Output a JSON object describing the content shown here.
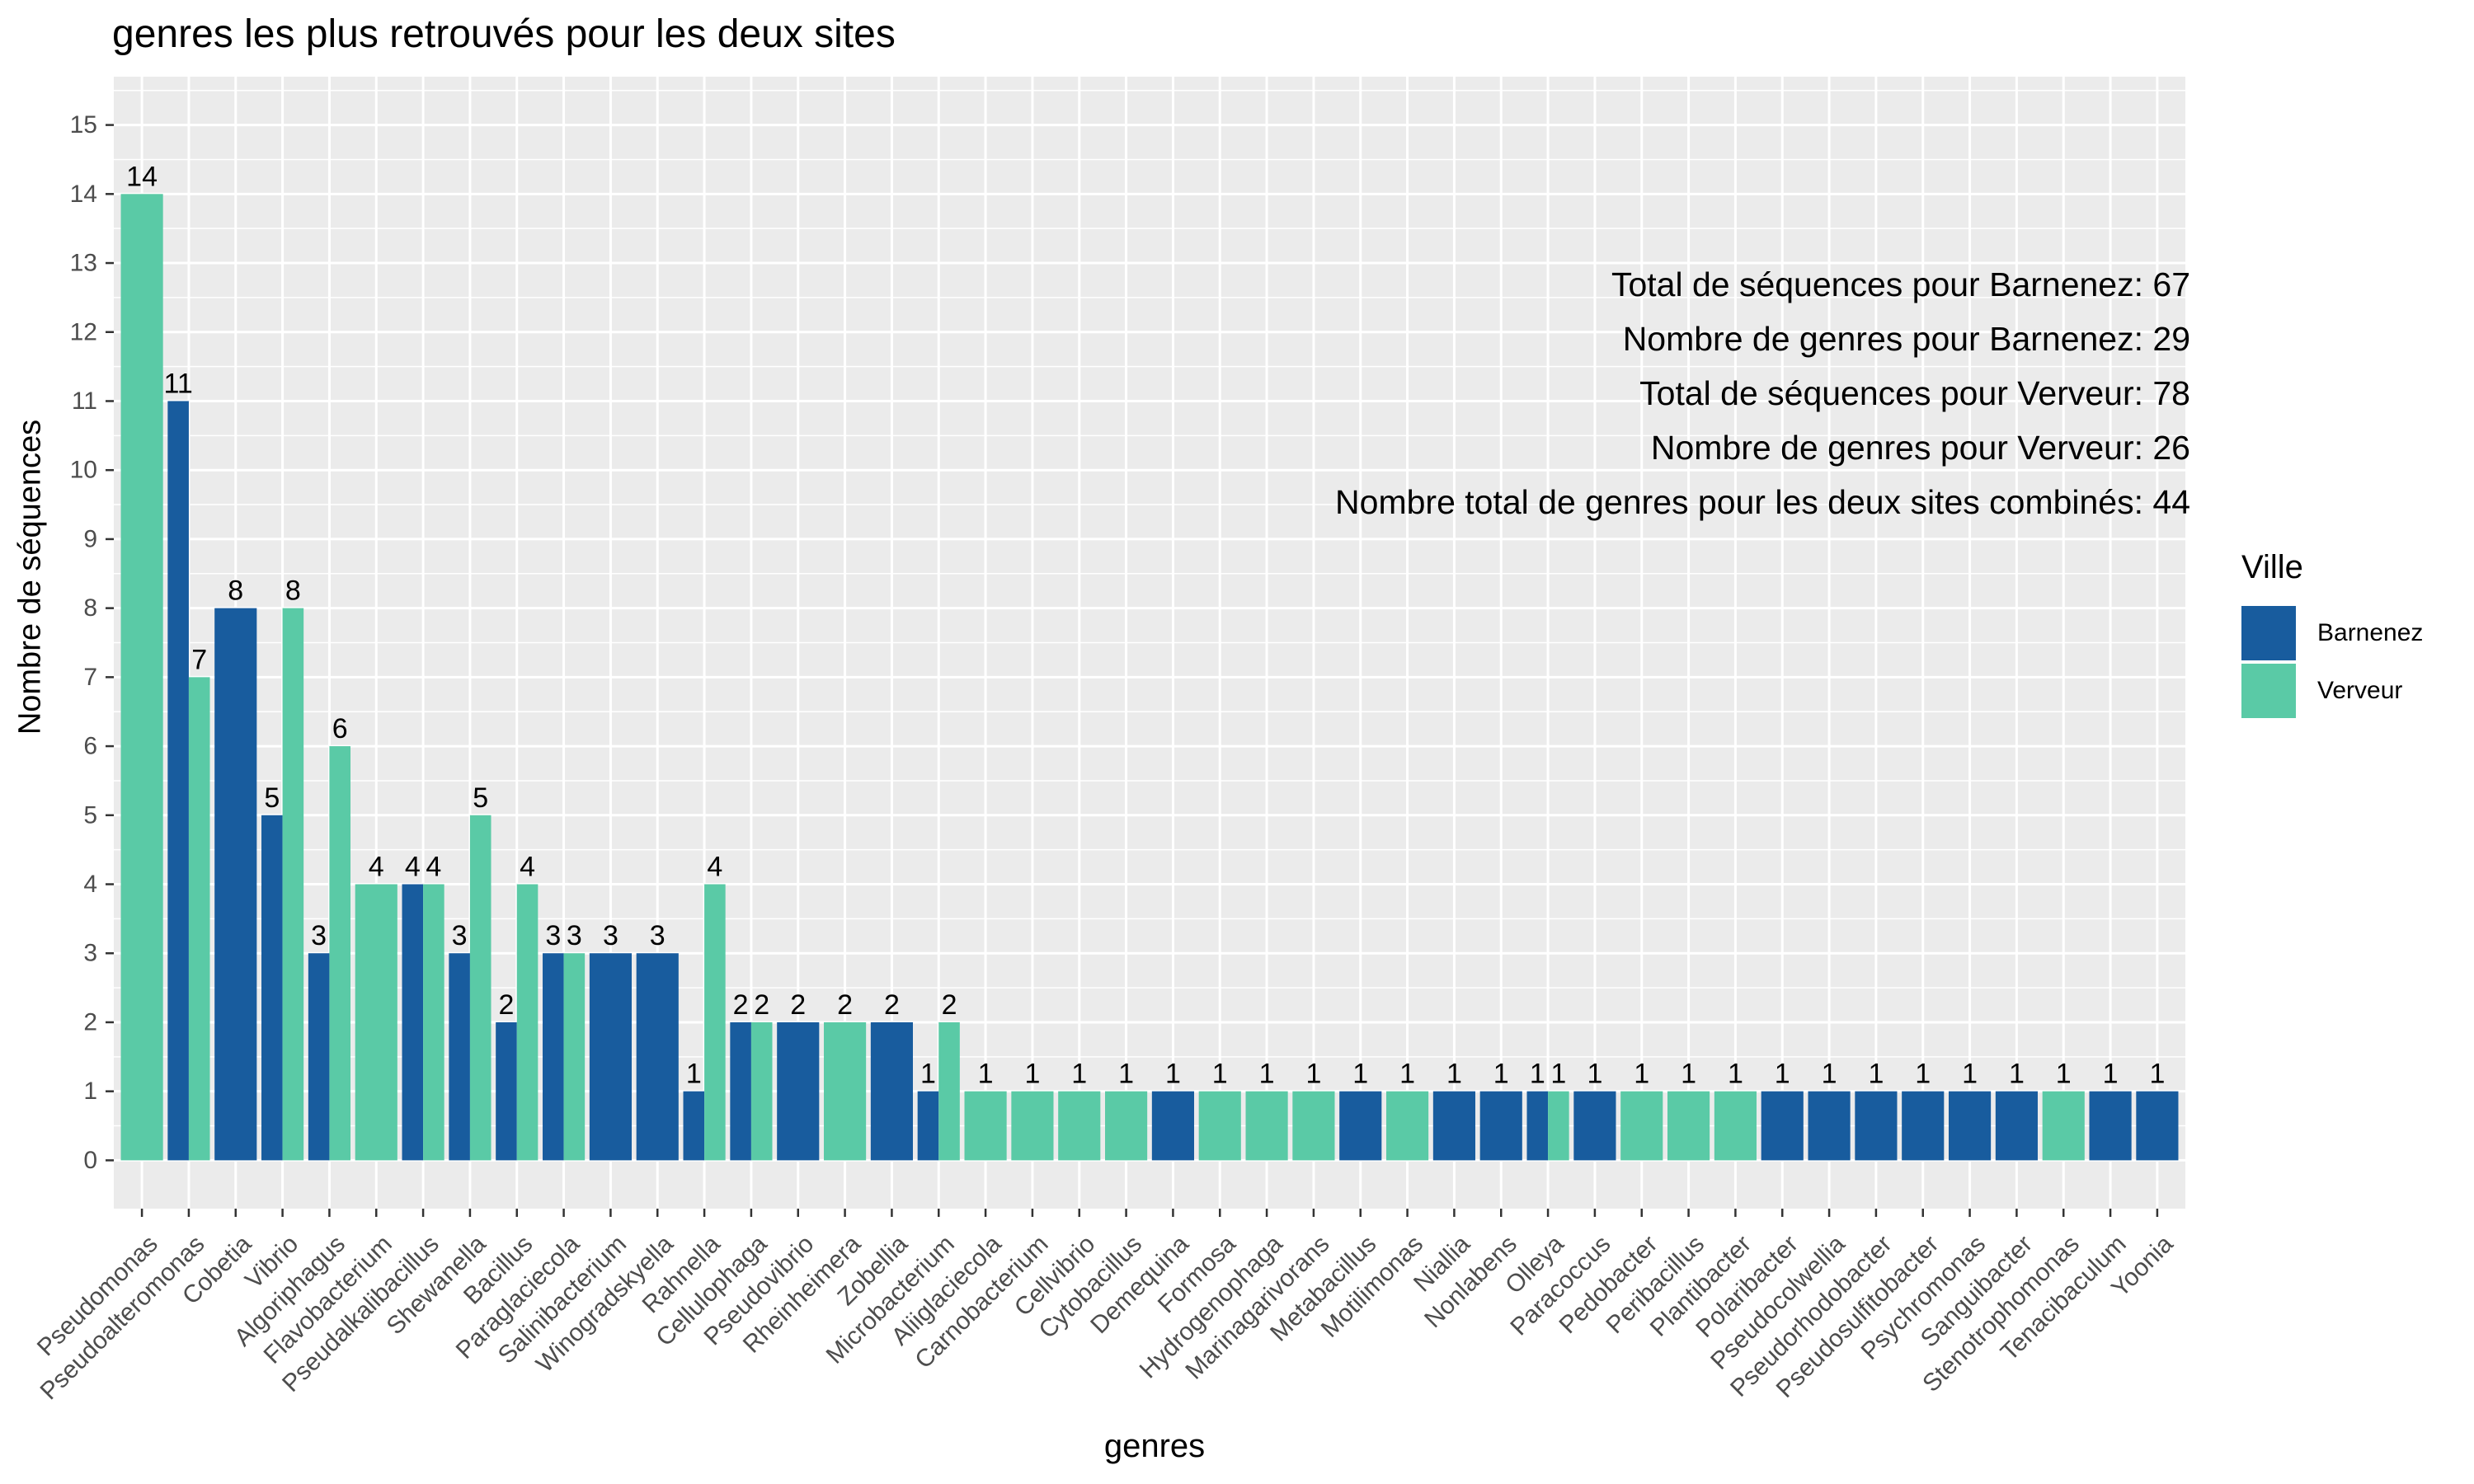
{
  "title": "genres les plus retrouvés pour les deux sites",
  "colors": {
    "Barnenez": "#185C9E",
    "Verveur": "#5ACAA6",
    "panel": "#EBEBEB",
    "grid": "#FFFFFF"
  },
  "legend": {
    "title": "Ville",
    "items": [
      {
        "label": "Barnenez",
        "color": "#185C9E"
      },
      {
        "label": "Verveur",
        "color": "#5ACAA6"
      }
    ]
  },
  "stats": [
    "Total de séquences pour Barnenez: 67",
    "Nombre de genres pour Barnenez: 29",
    "Total de séquences pour Verveur: 78",
    "Nombre de genres pour Verveur: 26",
    "Nombre total de genres pour les deux sites combinés: 44"
  ],
  "chart_data": {
    "type": "bar",
    "title": "genres les plus retrouvés pour les deux sites",
    "xlabel": "genres",
    "ylabel": "Nombre de séquences",
    "ylim": [
      -0.7,
      15.7
    ],
    "yticks": [
      0,
      1,
      2,
      3,
      4,
      5,
      6,
      7,
      8,
      9,
      10,
      11,
      12,
      13,
      14,
      15
    ],
    "grid": true,
    "legend_position": "right",
    "categories": [
      "Pseudomonas",
      "Pseudoalteromonas",
      "Cobetia",
      "Vibrio",
      "Algoriphagus",
      "Flavobacterium",
      "Pseudalkalibacillus",
      "Shewanella",
      "Bacillus",
      "Paraglaciecola",
      "Salinibacterium",
      "Winogradskyella",
      "Rahnella",
      "Cellulophaga",
      "Pseudovibrio",
      "Rheinheimera",
      "Zobellia",
      "Microbacterium",
      "Aliiglaciecola",
      "Carnobacterium",
      "Cellvibrio",
      "Cytobacillus",
      "Demequina",
      "Formosa",
      "Hydrogenophaga",
      "Marinagarivorans",
      "Metabacillus",
      "Motilimonas",
      "Niallia",
      "Nonlabens",
      "Olleya",
      "Paracoccus",
      "Pedobacter",
      "Peribacillus",
      "Plantibacter",
      "Polaribacter",
      "Pseudocolwellia",
      "Pseudorhodobacter",
      "Pseudosulfitobacter",
      "Psychromonas",
      "Sanguibacter",
      "Stenotrophomonas",
      "Tenacibaculum",
      "Yoonia"
    ],
    "series": [
      {
        "name": "Barnenez",
        "values": [
          0,
          11,
          8,
          5,
          3,
          0,
          4,
          3,
          2,
          3,
          3,
          3,
          1,
          2,
          2,
          0,
          2,
          1,
          0,
          0,
          0,
          0,
          1,
          0,
          0,
          0,
          1,
          0,
          1,
          1,
          1,
          1,
          0,
          0,
          0,
          1,
          1,
          1,
          1,
          1,
          1,
          0,
          1,
          1
        ]
      },
      {
        "name": "Verveur",
        "values": [
          14,
          7,
          0,
          8,
          6,
          4,
          4,
          5,
          4,
          3,
          0,
          0,
          4,
          2,
          0,
          2,
          0,
          2,
          1,
          1,
          1,
          1,
          0,
          1,
          1,
          1,
          0,
          1,
          0,
          0,
          1,
          0,
          1,
          1,
          1,
          0,
          0,
          0,
          0,
          0,
          0,
          1,
          0,
          0
        ]
      }
    ]
  }
}
